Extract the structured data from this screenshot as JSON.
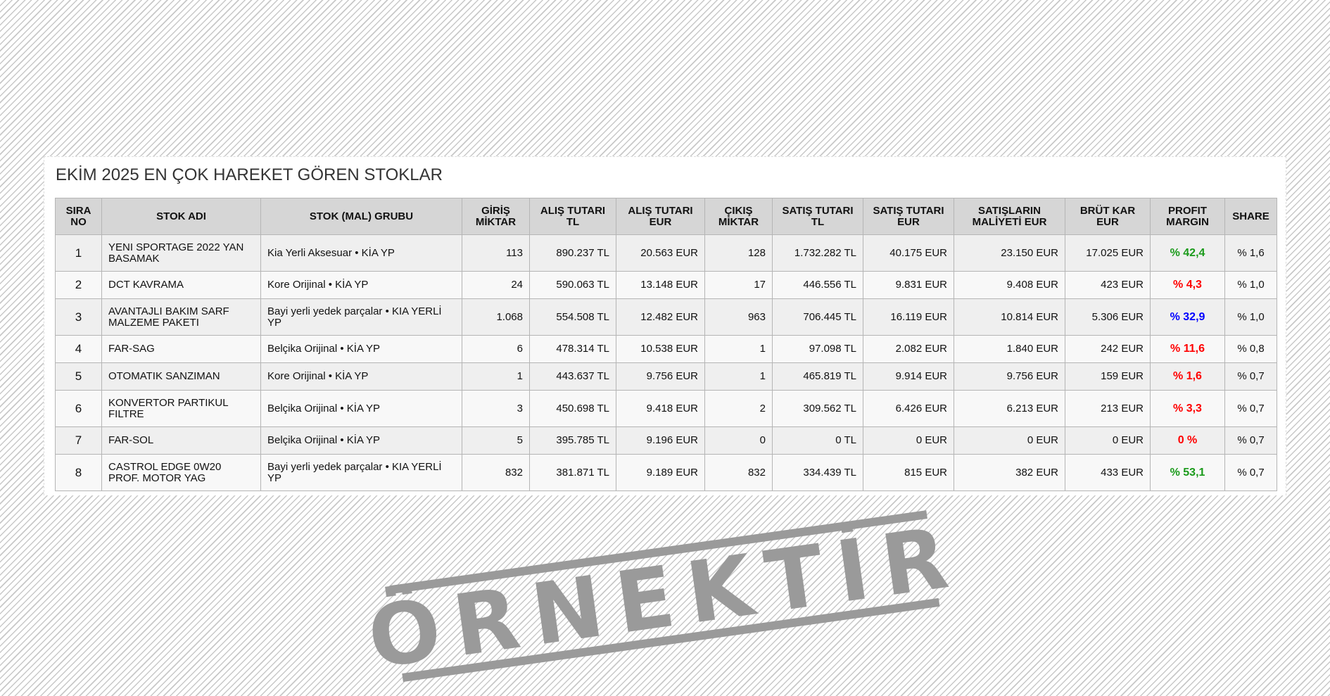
{
  "title": "EKİM 2025 EN ÇOK HAREKET GÖREN STOKLAR",
  "columns": [
    "SIRA NO",
    "STOK ADI",
    "STOK (MAL) GRUBU",
    "GİRİŞ MİKTAR",
    "ALIŞ TUTARI TL",
    "ALIŞ TUTARI EUR",
    "ÇIKIŞ MİKTAR",
    "SATIŞ TUTARI TL",
    "SATIŞ TUTARI EUR",
    "SATIŞLARIN MALİYETİ EUR",
    "BRÜT KAR EUR",
    "PROFIT MARGIN",
    "SHARE"
  ],
  "rows": [
    {
      "no": "1",
      "name": "YENI SPORTAGE 2022 YAN BASAMAK",
      "group": "Kia Yerli Aksesuar • KİA YP",
      "in_qty": "113",
      "buy_tl": "890.237 TL",
      "buy_eur": "20.563 EUR",
      "out_qty": "128",
      "sell_tl": "1.732.282 TL",
      "sell_eur": "40.175 EUR",
      "cost_eur": "23.150 EUR",
      "gross_eur": "17.025 EUR",
      "margin": "% 42,4",
      "margin_color": "#1a9a1a",
      "share": "% 1,6"
    },
    {
      "no": "2",
      "name": "DCT KAVRAMA",
      "group": "Kore Orijinal • KİA YP",
      "in_qty": "24",
      "buy_tl": "590.063 TL",
      "buy_eur": "13.148 EUR",
      "out_qty": "17",
      "sell_tl": "446.556 TL",
      "sell_eur": "9.831 EUR",
      "cost_eur": "9.408 EUR",
      "gross_eur": "423 EUR",
      "margin": "% 4,3",
      "margin_color": "#ff0000",
      "share": "% 1,0"
    },
    {
      "no": "3",
      "name": "AVANTAJLI BAKIM SARF MALZEME PAKETI",
      "group": "Bayi yerli yedek parçalar • KIA YERLİ YP",
      "in_qty": "1.068",
      "buy_tl": "554.508 TL",
      "buy_eur": "12.482 EUR",
      "out_qty": "963",
      "sell_tl": "706.445 TL",
      "sell_eur": "16.119 EUR",
      "cost_eur": "10.814 EUR",
      "gross_eur": "5.306 EUR",
      "margin": "% 32,9",
      "margin_color": "#0000ff",
      "share": "% 1,0"
    },
    {
      "no": "4",
      "name": "FAR-SAG",
      "group": "Belçika Orijinal • KİA YP",
      "in_qty": "6",
      "buy_tl": "478.314 TL",
      "buy_eur": "10.538 EUR",
      "out_qty": "1",
      "sell_tl": "97.098 TL",
      "sell_eur": "2.082 EUR",
      "cost_eur": "1.840 EUR",
      "gross_eur": "242 EUR",
      "margin": "% 11,6",
      "margin_color": "#ff0000",
      "share": "% 0,8"
    },
    {
      "no": "5",
      "name": "OTOMATIK SANZIMAN",
      "group": "Kore Orijinal • KİA YP",
      "in_qty": "1",
      "buy_tl": "443.637 TL",
      "buy_eur": "9.756 EUR",
      "out_qty": "1",
      "sell_tl": "465.819 TL",
      "sell_eur": "9.914 EUR",
      "cost_eur": "9.756 EUR",
      "gross_eur": "159 EUR",
      "margin": "% 1,6",
      "margin_color": "#ff0000",
      "share": "% 0,7"
    },
    {
      "no": "6",
      "name": "KONVERTOR PARTIKUL FILTRE",
      "group": "Belçika Orijinal • KİA YP",
      "in_qty": "3",
      "buy_tl": "450.698 TL",
      "buy_eur": "9.418 EUR",
      "out_qty": "2",
      "sell_tl": "309.562 TL",
      "sell_eur": "6.426 EUR",
      "cost_eur": "6.213 EUR",
      "gross_eur": "213 EUR",
      "margin": "% 3,3",
      "margin_color": "#ff0000",
      "share": "% 0,7"
    },
    {
      "no": "7",
      "name": "FAR-SOL",
      "group": "Belçika Orijinal • KİA YP",
      "in_qty": "5",
      "buy_tl": "395.785 TL",
      "buy_eur": "9.196 EUR",
      "out_qty": "0",
      "sell_tl": "0 TL",
      "sell_eur": "0 EUR",
      "cost_eur": "0 EUR",
      "gross_eur": "0 EUR",
      "margin": "0 %",
      "margin_color": "#ff0000",
      "share": "% 0,7"
    },
    {
      "no": "8",
      "name": "CASTROL EDGE 0W20 PROF. MOTOR YAG",
      "group": "Bayi yerli yedek parçalar • KIA YERLİ YP",
      "in_qty": "832",
      "buy_tl": "381.871 TL",
      "buy_eur": "9.189 EUR",
      "out_qty": "832",
      "sell_tl": "334.439 TL",
      "sell_eur": "815 EUR",
      "cost_eur": "382 EUR",
      "gross_eur": "433 EUR",
      "margin": "% 53,1",
      "margin_color": "#1a9a1a",
      "share": "% 0,7"
    }
  ],
  "watermark": {
    "text": "ÖRNEKTİR",
    "color": "#9a9a9a"
  }
}
